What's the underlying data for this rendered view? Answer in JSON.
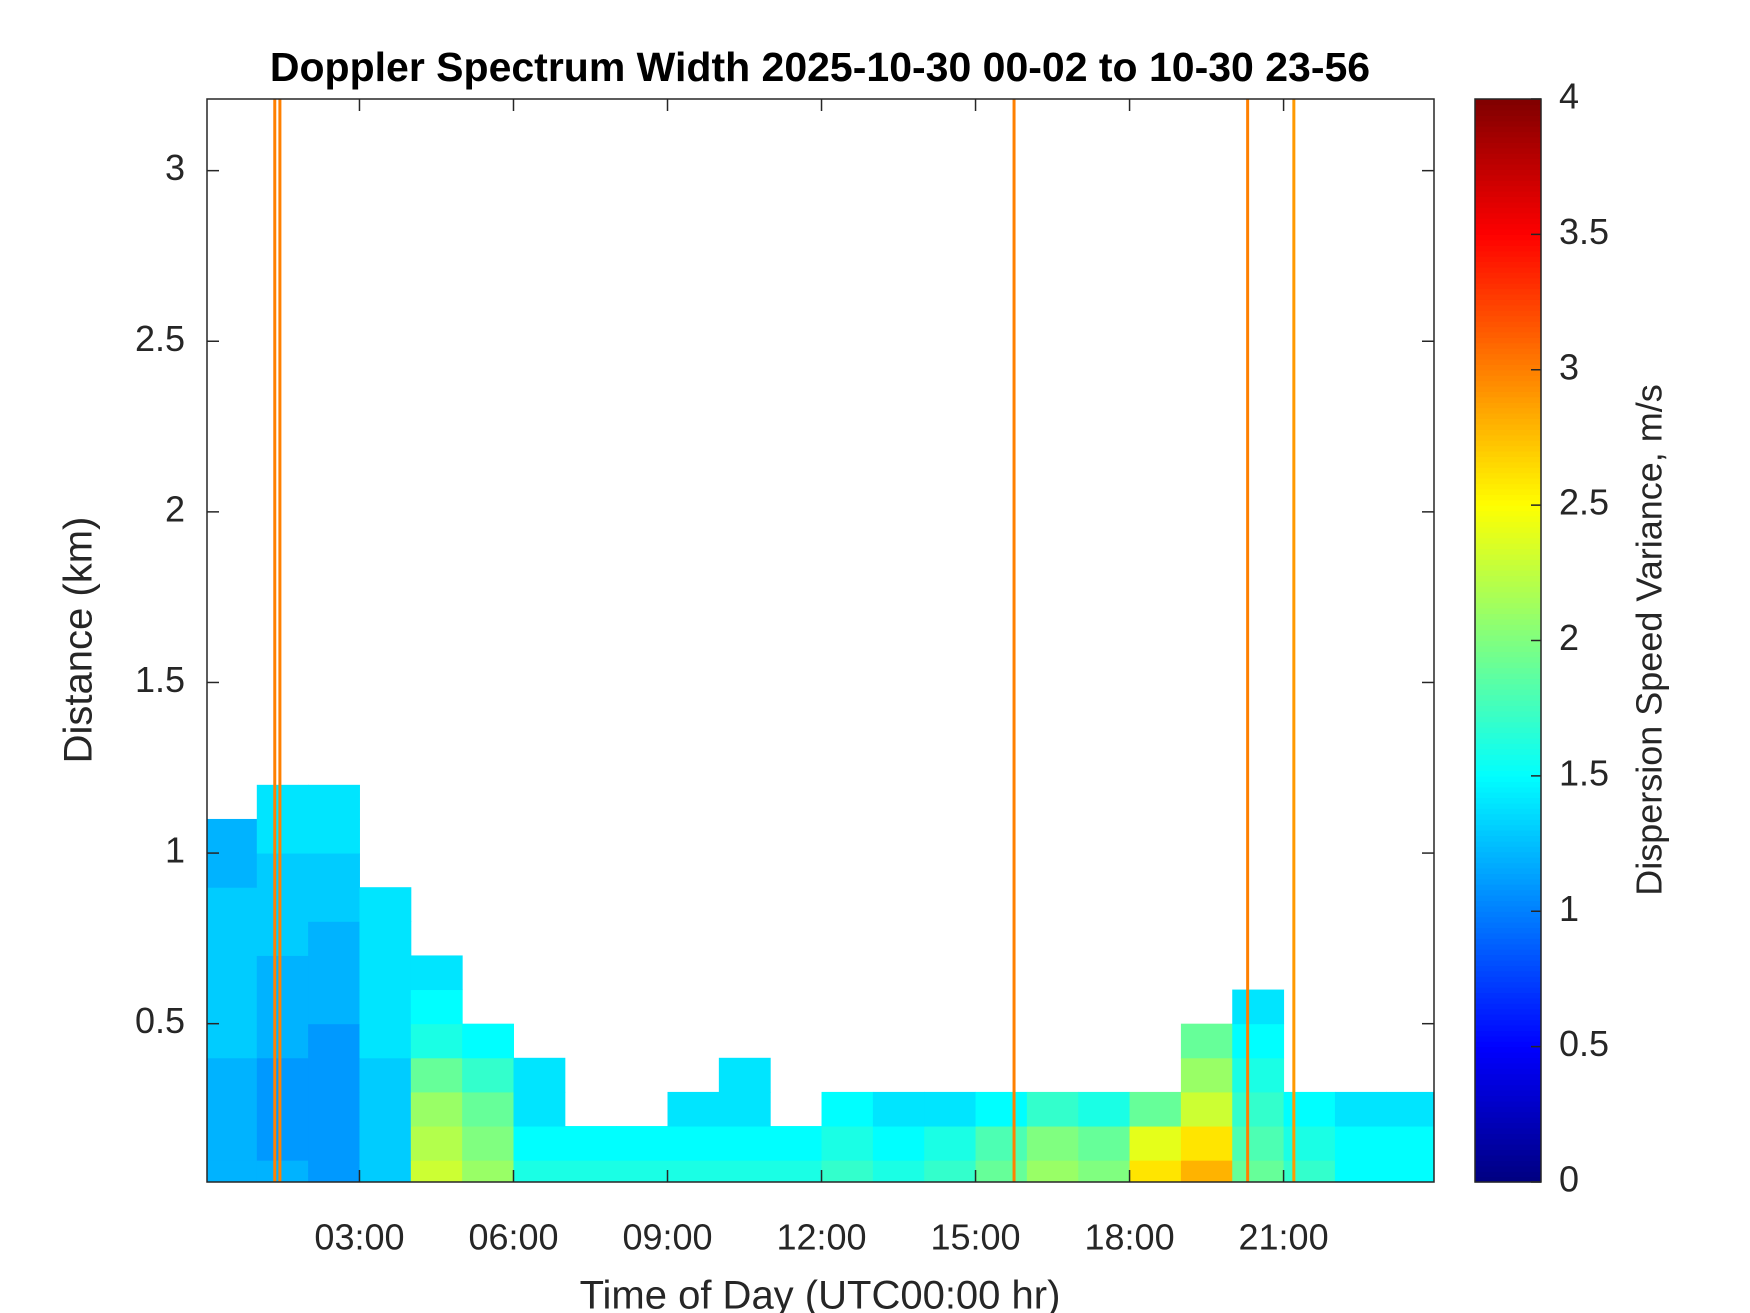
{
  "chart_data": {
    "type": "heatmap",
    "title": "Doppler Spectrum Width 2025-10-30 00-02 to 10-30 23-56",
    "xlabel": "Time of Day (UTC00:00 hr)",
    "ylabel": "Distance (km)",
    "colorbar_label": "Dispersion Speed Variance, m/s",
    "colormap": "jet",
    "xlim": [
      0.03,
      23.93
    ],
    "ylim": [
      0.036,
      3.21
    ],
    "clim": [
      0,
      4
    ],
    "xticks": [
      {
        "value": 3,
        "label": "03:00"
      },
      {
        "value": 6,
        "label": "06:00"
      },
      {
        "value": 9,
        "label": "09:00"
      },
      {
        "value": 12,
        "label": "12:00"
      },
      {
        "value": 15,
        "label": "15:00"
      },
      {
        "value": 18,
        "label": "18:00"
      },
      {
        "value": 21,
        "label": "21:00"
      }
    ],
    "yticks": [
      0.5,
      1,
      1.5,
      2,
      2.5,
      3
    ],
    "cticks": [
      0,
      0.5,
      1,
      1.5,
      2,
      2.5,
      3,
      3.5,
      4
    ],
    "x_edges": [
      0,
      1,
      2,
      3,
      4,
      5,
      6,
      7,
      8,
      9,
      10,
      11,
      12,
      13,
      14,
      15,
      16,
      17,
      18,
      19,
      20,
      21,
      22,
      23,
      24
    ],
    "y_edges": [
      0,
      0.1,
      0.2,
      0.3,
      0.4,
      0.5,
      0.6,
      0.7,
      0.8,
      0.9,
      1.0,
      1.1,
      1.2
    ],
    "z": [
      [
        1.2,
        1.2,
        1.1,
        1.3,
        2.3,
        2.1,
        1.6,
        1.6,
        1.6,
        1.6,
        1.6,
        1.6,
        1.7,
        1.6,
        1.7,
        1.9,
        2.1,
        2.0,
        2.6,
        2.8,
        1.9,
        1.7,
        1.5,
        1.5
      ],
      [
        1.2,
        1.1,
        1.1,
        1.3,
        2.2,
        2.0,
        1.5,
        1.5,
        1.5,
        1.5,
        1.5,
        1.5,
        1.6,
        1.5,
        1.6,
        1.8,
        2.0,
        1.9,
        2.4,
        2.6,
        1.8,
        1.6,
        1.5,
        1.5
      ],
      [
        1.2,
        1.1,
        1.1,
        1.3,
        2.1,
        1.9,
        1.4,
        null,
        null,
        1.4,
        1.4,
        null,
        1.5,
        1.4,
        1.4,
        1.5,
        1.7,
        1.6,
        1.9,
        2.3,
        1.7,
        1.5,
        1.4,
        1.4
      ],
      [
        1.2,
        1.1,
        1.1,
        1.3,
        1.9,
        1.7,
        1.4,
        null,
        null,
        null,
        1.4,
        null,
        null,
        null,
        null,
        null,
        null,
        null,
        null,
        2.1,
        1.6,
        null,
        null,
        null
      ],
      [
        1.3,
        1.2,
        1.1,
        1.4,
        1.6,
        1.5,
        null,
        null,
        null,
        null,
        null,
        null,
        null,
        null,
        null,
        null,
        null,
        null,
        null,
        1.9,
        1.5,
        null,
        null,
        null
      ],
      [
        1.3,
        1.2,
        1.2,
        1.4,
        1.5,
        null,
        null,
        null,
        null,
        null,
        null,
        null,
        null,
        null,
        null,
        null,
        null,
        null,
        null,
        null,
        1.4,
        null,
        null,
        null
      ],
      [
        1.3,
        1.2,
        1.2,
        1.4,
        1.4,
        null,
        null,
        null,
        null,
        null,
        null,
        null,
        null,
        null,
        null,
        null,
        null,
        null,
        null,
        null,
        null,
        null,
        null,
        null
      ],
      [
        1.3,
        1.3,
        1.2,
        1.4,
        null,
        null,
        null,
        null,
        null,
        null,
        null,
        null,
        null,
        null,
        null,
        null,
        null,
        null,
        null,
        null,
        null,
        null,
        null,
        null
      ],
      [
        1.3,
        1.3,
        1.3,
        1.4,
        null,
        null,
        null,
        null,
        null,
        null,
        null,
        null,
        null,
        null,
        null,
        null,
        null,
        null,
        null,
        null,
        null,
        null,
        null,
        null
      ],
      [
        1.2,
        1.3,
        1.3,
        null,
        null,
        null,
        null,
        null,
        null,
        null,
        null,
        null,
        null,
        null,
        null,
        null,
        null,
        null,
        null,
        null,
        null,
        null,
        null,
        null
      ],
      [
        1.2,
        1.4,
        1.4,
        null,
        null,
        null,
        null,
        null,
        null,
        null,
        null,
        null,
        null,
        null,
        null,
        null,
        null,
        null,
        null,
        null,
        null,
        null,
        null,
        null
      ],
      [
        null,
        1.4,
        1.4,
        null,
        null,
        null,
        null,
        null,
        null,
        null,
        null,
        null,
        null,
        null,
        null,
        null,
        null,
        null,
        null,
        null,
        null,
        null,
        null,
        null
      ]
    ],
    "spikes": {
      "x": [
        1.35,
        1.45,
        15.75,
        20.3,
        21.2
      ],
      "values": [
        3,
        3,
        3,
        3,
        2.9
      ]
    }
  }
}
